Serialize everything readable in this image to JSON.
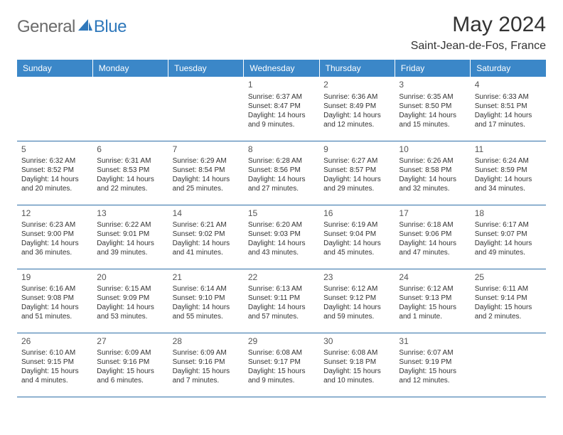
{
  "logo": {
    "text1": "General",
    "text2": "Blue"
  },
  "title": "May 2024",
  "location": "Saint-Jean-de-Fos, France",
  "day_headers": [
    "Sunday",
    "Monday",
    "Tuesday",
    "Wednesday",
    "Thursday",
    "Friday",
    "Saturday"
  ],
  "colors": {
    "header_bg": "#3b87c8",
    "header_text": "#ffffff",
    "border": "#2f6fa8",
    "logo_gray": "#6b6b6b",
    "logo_blue": "#2f78bb",
    "text": "#333333"
  },
  "weeks": [
    [
      null,
      null,
      null,
      {
        "n": "1",
        "sr": "Sunrise: 6:37 AM",
        "ss": "Sunset: 8:47 PM",
        "d1": "Daylight: 14 hours",
        "d2": "and 9 minutes."
      },
      {
        "n": "2",
        "sr": "Sunrise: 6:36 AM",
        "ss": "Sunset: 8:49 PM",
        "d1": "Daylight: 14 hours",
        "d2": "and 12 minutes."
      },
      {
        "n": "3",
        "sr": "Sunrise: 6:35 AM",
        "ss": "Sunset: 8:50 PM",
        "d1": "Daylight: 14 hours",
        "d2": "and 15 minutes."
      },
      {
        "n": "4",
        "sr": "Sunrise: 6:33 AM",
        "ss": "Sunset: 8:51 PM",
        "d1": "Daylight: 14 hours",
        "d2": "and 17 minutes."
      }
    ],
    [
      {
        "n": "5",
        "sr": "Sunrise: 6:32 AM",
        "ss": "Sunset: 8:52 PM",
        "d1": "Daylight: 14 hours",
        "d2": "and 20 minutes."
      },
      {
        "n": "6",
        "sr": "Sunrise: 6:31 AM",
        "ss": "Sunset: 8:53 PM",
        "d1": "Daylight: 14 hours",
        "d2": "and 22 minutes."
      },
      {
        "n": "7",
        "sr": "Sunrise: 6:29 AM",
        "ss": "Sunset: 8:54 PM",
        "d1": "Daylight: 14 hours",
        "d2": "and 25 minutes."
      },
      {
        "n": "8",
        "sr": "Sunrise: 6:28 AM",
        "ss": "Sunset: 8:56 PM",
        "d1": "Daylight: 14 hours",
        "d2": "and 27 minutes."
      },
      {
        "n": "9",
        "sr": "Sunrise: 6:27 AM",
        "ss": "Sunset: 8:57 PM",
        "d1": "Daylight: 14 hours",
        "d2": "and 29 minutes."
      },
      {
        "n": "10",
        "sr": "Sunrise: 6:26 AM",
        "ss": "Sunset: 8:58 PM",
        "d1": "Daylight: 14 hours",
        "d2": "and 32 minutes."
      },
      {
        "n": "11",
        "sr": "Sunrise: 6:24 AM",
        "ss": "Sunset: 8:59 PM",
        "d1": "Daylight: 14 hours",
        "d2": "and 34 minutes."
      }
    ],
    [
      {
        "n": "12",
        "sr": "Sunrise: 6:23 AM",
        "ss": "Sunset: 9:00 PM",
        "d1": "Daylight: 14 hours",
        "d2": "and 36 minutes."
      },
      {
        "n": "13",
        "sr": "Sunrise: 6:22 AM",
        "ss": "Sunset: 9:01 PM",
        "d1": "Daylight: 14 hours",
        "d2": "and 39 minutes."
      },
      {
        "n": "14",
        "sr": "Sunrise: 6:21 AM",
        "ss": "Sunset: 9:02 PM",
        "d1": "Daylight: 14 hours",
        "d2": "and 41 minutes."
      },
      {
        "n": "15",
        "sr": "Sunrise: 6:20 AM",
        "ss": "Sunset: 9:03 PM",
        "d1": "Daylight: 14 hours",
        "d2": "and 43 minutes."
      },
      {
        "n": "16",
        "sr": "Sunrise: 6:19 AM",
        "ss": "Sunset: 9:04 PM",
        "d1": "Daylight: 14 hours",
        "d2": "and 45 minutes."
      },
      {
        "n": "17",
        "sr": "Sunrise: 6:18 AM",
        "ss": "Sunset: 9:06 PM",
        "d1": "Daylight: 14 hours",
        "d2": "and 47 minutes."
      },
      {
        "n": "18",
        "sr": "Sunrise: 6:17 AM",
        "ss": "Sunset: 9:07 PM",
        "d1": "Daylight: 14 hours",
        "d2": "and 49 minutes."
      }
    ],
    [
      {
        "n": "19",
        "sr": "Sunrise: 6:16 AM",
        "ss": "Sunset: 9:08 PM",
        "d1": "Daylight: 14 hours",
        "d2": "and 51 minutes."
      },
      {
        "n": "20",
        "sr": "Sunrise: 6:15 AM",
        "ss": "Sunset: 9:09 PM",
        "d1": "Daylight: 14 hours",
        "d2": "and 53 minutes."
      },
      {
        "n": "21",
        "sr": "Sunrise: 6:14 AM",
        "ss": "Sunset: 9:10 PM",
        "d1": "Daylight: 14 hours",
        "d2": "and 55 minutes."
      },
      {
        "n": "22",
        "sr": "Sunrise: 6:13 AM",
        "ss": "Sunset: 9:11 PM",
        "d1": "Daylight: 14 hours",
        "d2": "and 57 minutes."
      },
      {
        "n": "23",
        "sr": "Sunrise: 6:12 AM",
        "ss": "Sunset: 9:12 PM",
        "d1": "Daylight: 14 hours",
        "d2": "and 59 minutes."
      },
      {
        "n": "24",
        "sr": "Sunrise: 6:12 AM",
        "ss": "Sunset: 9:13 PM",
        "d1": "Daylight: 15 hours",
        "d2": "and 1 minute."
      },
      {
        "n": "25",
        "sr": "Sunrise: 6:11 AM",
        "ss": "Sunset: 9:14 PM",
        "d1": "Daylight: 15 hours",
        "d2": "and 2 minutes."
      }
    ],
    [
      {
        "n": "26",
        "sr": "Sunrise: 6:10 AM",
        "ss": "Sunset: 9:15 PM",
        "d1": "Daylight: 15 hours",
        "d2": "and 4 minutes."
      },
      {
        "n": "27",
        "sr": "Sunrise: 6:09 AM",
        "ss": "Sunset: 9:16 PM",
        "d1": "Daylight: 15 hours",
        "d2": "and 6 minutes."
      },
      {
        "n": "28",
        "sr": "Sunrise: 6:09 AM",
        "ss": "Sunset: 9:16 PM",
        "d1": "Daylight: 15 hours",
        "d2": "and 7 minutes."
      },
      {
        "n": "29",
        "sr": "Sunrise: 6:08 AM",
        "ss": "Sunset: 9:17 PM",
        "d1": "Daylight: 15 hours",
        "d2": "and 9 minutes."
      },
      {
        "n": "30",
        "sr": "Sunrise: 6:08 AM",
        "ss": "Sunset: 9:18 PM",
        "d1": "Daylight: 15 hours",
        "d2": "and 10 minutes."
      },
      {
        "n": "31",
        "sr": "Sunrise: 6:07 AM",
        "ss": "Sunset: 9:19 PM",
        "d1": "Daylight: 15 hours",
        "d2": "and 12 minutes."
      },
      null
    ]
  ]
}
